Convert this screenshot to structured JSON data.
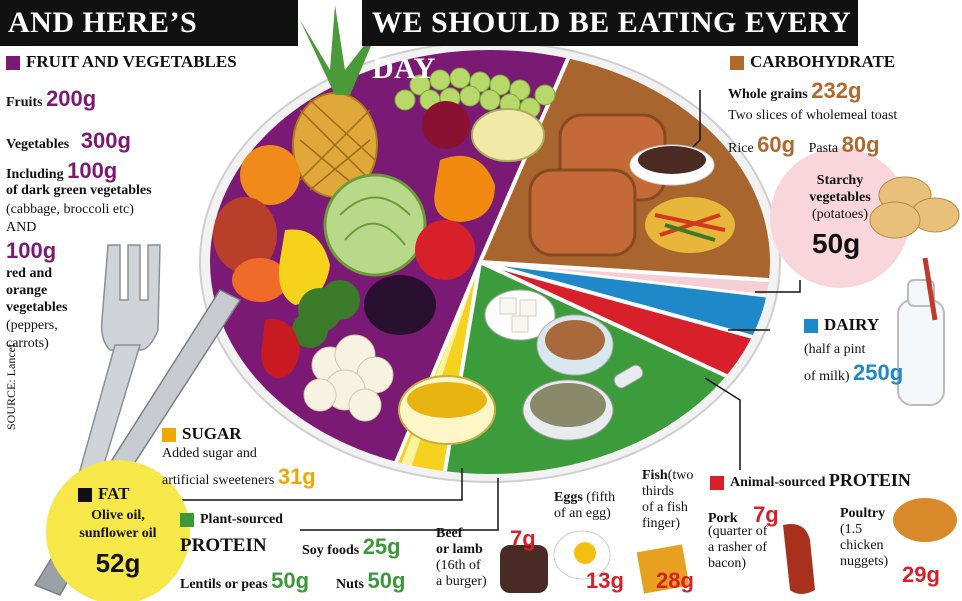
{
  "header": {
    "title_left": "AND HERE’S WHAT",
    "title_right": "WE SHOULD BE EATING EVERY DAY"
  },
  "colors": {
    "fruit_veg": "#7b1a74",
    "carbohydrate": "#b06a2e",
    "dairy": "#1e88c8",
    "animal_protein": "#d8202a",
    "plant_protein": "#3a9a3a",
    "sugar": "#f0a800",
    "fat": "#f7e84a",
    "starchy": "#f9d6dc"
  },
  "fruit_veg": {
    "heading": "FRUIT AND VEGETABLES",
    "fruits_label": "Fruits",
    "fruits_value": "200g",
    "veg_label": "Vegetables",
    "veg_value": "300g",
    "including": "Including",
    "dark_green_value": "100g",
    "dark_green_label": "of dark green vegetables",
    "dark_green_note": "(cabbage, broccoli etc)",
    "and": "AND",
    "red_orange_value": "100g",
    "red_orange_l1": "red and",
    "red_orange_l2": "orange",
    "red_orange_l3": "vegetables",
    "red_orange_note1": "(peppers,",
    "red_orange_note2": "carrots)"
  },
  "source": "SOURCE: Lancet",
  "carbohydrate": {
    "heading": "CARBOHYDRATE",
    "whole_grains_label": "Whole grains",
    "whole_grains_value": "232g",
    "toast_note": "Two slices of wholemeal toast",
    "rice_label": "Rice",
    "rice_value": "60g",
    "pasta_label": "Pasta",
    "pasta_value": "80g"
  },
  "starchy": {
    "l1": "Starchy",
    "l2": "vegetables",
    "l3": "(potatoes)",
    "value": "50g"
  },
  "dairy": {
    "heading": "DAIRY",
    "note1": "(half a pint",
    "note2": "of milk)",
    "value": "250g"
  },
  "sugar": {
    "heading": "SUGAR",
    "note1": "Added sugar and",
    "note2": "artificial sweeteners",
    "value": "31g"
  },
  "fat": {
    "heading": "FAT",
    "note1": "Olive oil,",
    "note2": "sunflower oil",
    "value": "52g"
  },
  "plant_protein": {
    "heading1": "Plant-sourced",
    "heading2": "PROTEIN",
    "soy_label": "Soy foods",
    "soy_value": "25g",
    "lentils_label": "Lentils or peas",
    "lentils_value": "50g",
    "nuts_label": "Nuts",
    "nuts_value": "50g"
  },
  "animal_protein": {
    "heading_small": "Animal-sourced",
    "heading_big": "PROTEIN",
    "beef_l1": "Beef",
    "beef_l2": "or lamb",
    "beef_note1": "(16th of",
    "beef_note2": "a burger)",
    "beef_value": "7g",
    "eggs_label": "Eggs",
    "eggs_note1": "(fifth",
    "eggs_note2": "of an egg)",
    "eggs_value": "13g",
    "fish_label": "Fish",
    "fish_note1": "(two",
    "fish_note2": "thirds",
    "fish_note3": "of a fish",
    "fish_note4": "finger)",
    "fish_value": "28g",
    "pork_label": "Pork",
    "pork_value": "7g",
    "pork_note1": "(quarter of",
    "pork_note2": "a rasher of",
    "pork_note3": "bacon)",
    "poultry_label": "Poultry",
    "poultry_note1": "(1.5",
    "poultry_note2": "chicken",
    "poultry_note3": "nuggets)",
    "poultry_value": "29g"
  }
}
